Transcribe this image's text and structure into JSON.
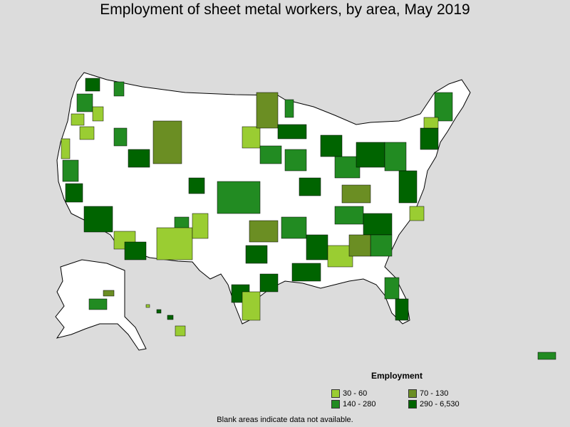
{
  "title": "Employment of sheet metal workers, by area, May 2019",
  "legend": {
    "title": "Employment",
    "items": [
      {
        "label": "30 - 60",
        "color": "#9acd32"
      },
      {
        "label": "70 - 130",
        "color": "#6b8e23"
      },
      {
        "label": "140 - 280",
        "color": "#228b22"
      },
      {
        "label": "290 - 6,530",
        "color": "#006400"
      }
    ]
  },
  "footnote": "Blank areas indicate data not available.",
  "colors": {
    "background": "#dcdcdc",
    "blank": "#ffffff",
    "border": "#000000"
  }
}
